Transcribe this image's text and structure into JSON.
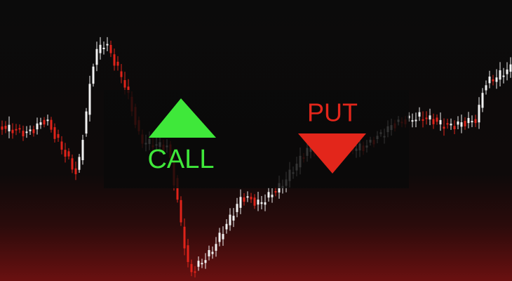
{
  "call_label": "CALL",
  "put_label": "PUT"
}
